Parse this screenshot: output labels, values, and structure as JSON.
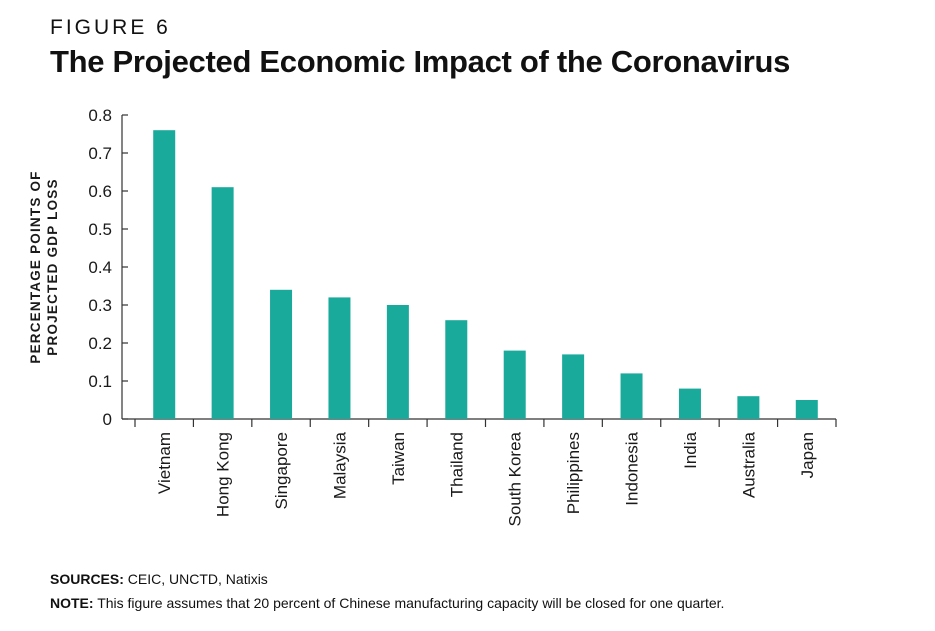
{
  "figure_label": "FIGURE 6",
  "title": "The Projected Economic Impact of the Coronavirus",
  "ylabel_lines": [
    "PERCENTAGE POINTS OF",
    "PROJECTED GDP LOSS"
  ],
  "footer": {
    "sources_label": "SOURCES:",
    "sources_text": "CEIC, UNCTD, Natixis",
    "note_label": "NOTE:",
    "note_text": "This figure assumes that 20 percent of Chinese manufacturing capacity will be closed for one quarter."
  },
  "colors": {
    "bar": "#1aaa9c",
    "axis": "#333333"
  },
  "chart_data": {
    "type": "bar",
    "title": "The Projected Economic Impact of the Coronavirus",
    "ylabel": "PERCENTAGE POINTS OF PROJECTED GDP LOSS",
    "xlabel": "",
    "categories": [
      "Vietnam",
      "Hong Kong",
      "Singapore",
      "Malaysia",
      "Taiwan",
      "Thailand",
      "South Korea",
      "Philippines",
      "Indonesia",
      "India",
      "Australia",
      "Japan"
    ],
    "values": [
      0.76,
      0.61,
      0.34,
      0.32,
      0.3,
      0.26,
      0.18,
      0.17,
      0.12,
      0.08,
      0.06,
      0.05
    ],
    "ylim": [
      0,
      0.8
    ],
    "yticks": [
      "0",
      "0.1",
      "0.2",
      "0.3",
      "0.4",
      "0.5",
      "0.6",
      "0.7",
      "0.8"
    ],
    "grid": false,
    "legend": "none"
  }
}
